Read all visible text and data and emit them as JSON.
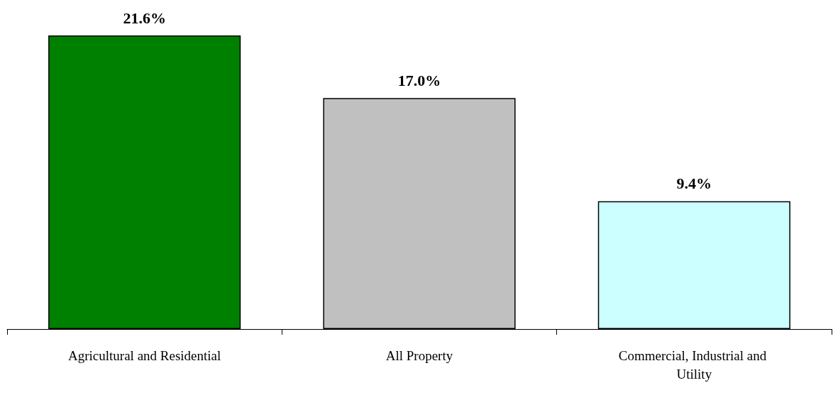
{
  "chart_data": {
    "type": "bar",
    "categories": [
      "Agricultural and Residential",
      "All Property",
      "Commercial, Industrial and Utility"
    ],
    "values": [
      21.6,
      17.0,
      9.4
    ],
    "value_labels": [
      "21.6%",
      "17.0%",
      "9.4%"
    ],
    "colors": [
      "#008000",
      "#c0c0c0",
      "#ccffff"
    ]
  }
}
